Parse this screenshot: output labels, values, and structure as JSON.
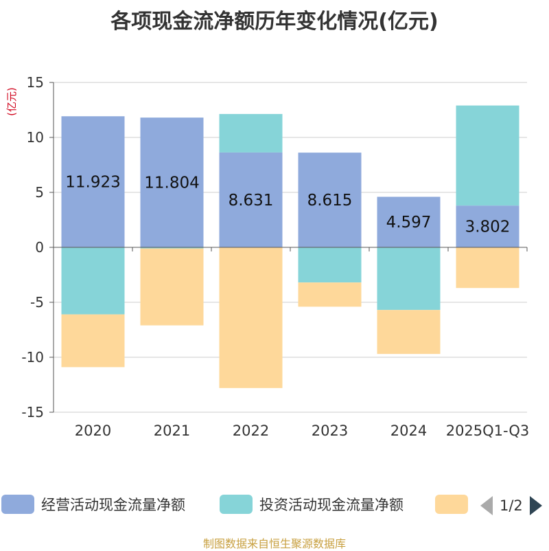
{
  "title": "各项现金流净额历年变化情况(亿元)",
  "unit_label": "(亿元)",
  "source": "制图数据来自恒生聚源数据库",
  "legend_pager": "1/2",
  "chart_data": {
    "type": "bar",
    "stacked": true,
    "title": "各项现金流净额历年变化情况(亿元)",
    "ylabel": "(亿元)",
    "xlabel": "",
    "categories": [
      "2020",
      "2021",
      "2022",
      "2023",
      "2024",
      "2025Q1-Q3"
    ],
    "ylim": [
      -15,
      15
    ],
    "yticks": [
      15,
      10,
      5,
      0,
      -5,
      -10,
      -15
    ],
    "ytick_labels": [
      "15",
      "10",
      "5",
      "0",
      "-5",
      "-10",
      "-15"
    ],
    "grid": true,
    "legend_position": "bottom",
    "series": [
      {
        "name": "经营活动现金流量净额",
        "color": "#8faadc",
        "values": [
          11.923,
          11.804,
          8.631,
          8.615,
          4.597,
          3.802
        ],
        "data_labels": [
          "11.923",
          "11.804",
          "8.631",
          "8.615",
          "4.597",
          "3.802"
        ]
      },
      {
        "name": "投资活动现金流量净额",
        "color": "#86d4d8",
        "values": [
          -6.1,
          -0.1,
          3.5,
          -3.2,
          -5.7,
          9.1
        ]
      },
      {
        "name": "",
        "color": "#fed89a",
        "values": [
          -4.8,
          -7.0,
          -12.8,
          -2.2,
          -4.0,
          -3.7
        ]
      }
    ]
  }
}
